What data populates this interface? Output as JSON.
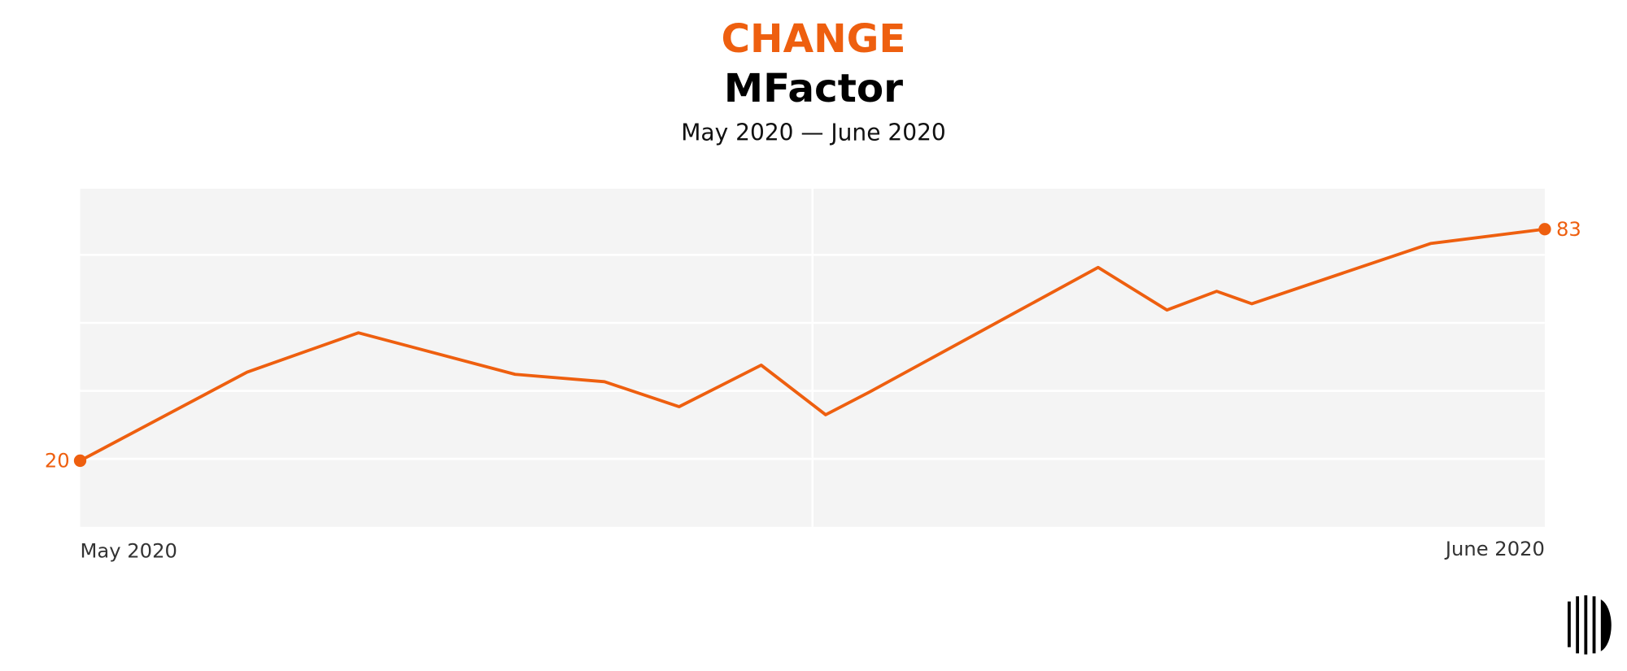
{
  "chart_data": {
    "type": "line",
    "kicker": "CHANGE",
    "title": "MFactor",
    "subtitle": "May 2020 — June 2020",
    "color": "#ee5f0f",
    "x": [
      0,
      11.4,
      19.0,
      29.7,
      35.8,
      40.9,
      46.5,
      50.9,
      53.9,
      69.5,
      74.2,
      77.6,
      80.0,
      92.2,
      100
    ],
    "values": [
      20,
      44.1,
      54.8,
      43.5,
      41.5,
      34.7,
      46.0,
      32.5,
      38.7,
      72.6,
      61.0,
      66.1,
      62.7,
      79.1,
      83
    ],
    "xlim": [
      0,
      100
    ],
    "xticks": [
      {
        "value": 0,
        "label": "May 2020"
      },
      {
        "value": 100,
        "label": "June 2020"
      }
    ],
    "ylim": [
      2,
      94
    ],
    "yticks": [
      20.5,
      39,
      57.5,
      76
    ],
    "grid": true
  }
}
